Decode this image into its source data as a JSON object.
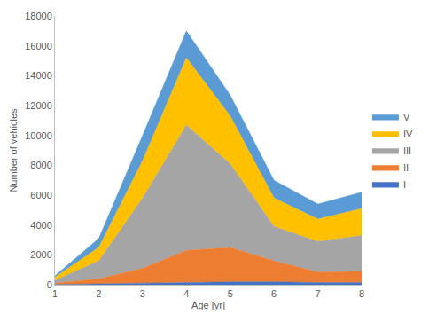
{
  "chart_data": {
    "type": "area",
    "stacked": true,
    "legend": "right",
    "grid": false,
    "x_label": "Age [yr]",
    "y_label": "Number of vehicles",
    "x": [
      1,
      2,
      3,
      4,
      5,
      6,
      7,
      8
    ],
    "xlim": [
      1,
      8
    ],
    "xticks": [
      1,
      2,
      3,
      4,
      5,
      6,
      7,
      8
    ],
    "ylim": [
      0,
      18000
    ],
    "yticks": [
      0,
      2000,
      4000,
      6000,
      8000,
      10000,
      12000,
      14000,
      16000,
      18000
    ],
    "series": [
      {
        "name": "I",
        "color": "#4472c4",
        "values": [
          20,
          50,
          80,
          150,
          200,
          200,
          150,
          150
        ]
      },
      {
        "name": "II",
        "color": "#ed7d31",
        "values": [
          80,
          350,
          1020,
          2150,
          2300,
          1400,
          700,
          750
        ]
      },
      {
        "name": "III",
        "color": "#a5a5a5",
        "values": [
          200,
          1200,
          4700,
          8400,
          5600,
          2300,
          2050,
          2400
        ]
      },
      {
        "name": "IV",
        "color": "#ffc000",
        "values": [
          200,
          900,
          2500,
          4500,
          3200,
          1900,
          1500,
          1800
        ]
      },
      {
        "name": "V",
        "color": "#5b9bd5",
        "values": [
          100,
          600,
          1700,
          1800,
          1400,
          1200,
          1000,
          1100
        ]
      }
    ]
  }
}
